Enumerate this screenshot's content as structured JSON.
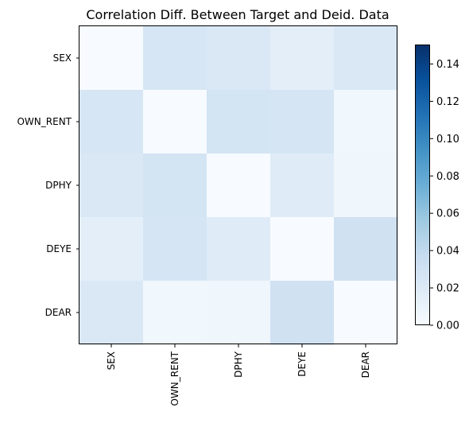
{
  "chart_data": {
    "type": "heatmap",
    "title": "Correlation Diff. Between Target and Deid. Data",
    "x_categories": [
      "SEX",
      "OWN_RENT",
      "DPHY",
      "DEYE",
      "DEAR"
    ],
    "y_categories": [
      "SEX",
      "OWN_RENT",
      "DPHY",
      "DEYE",
      "DEAR"
    ],
    "values": [
      [
        0.0,
        0.025,
        0.022,
        0.015,
        0.022
      ],
      [
        0.025,
        0.0,
        0.027,
        0.026,
        0.005
      ],
      [
        0.022,
        0.027,
        0.0,
        0.018,
        0.006
      ],
      [
        0.015,
        0.026,
        0.018,
        0.0,
        0.03
      ],
      [
        0.022,
        0.005,
        0.006,
        0.03,
        0.0
      ]
    ],
    "colorbar": {
      "min": 0.0,
      "max": 0.15,
      "ticks": [
        "0.00",
        "0.02",
        "0.04",
        "0.06",
        "0.08",
        "0.10",
        "0.12",
        "0.14"
      ],
      "colormap": "Blues"
    },
    "grid": false
  }
}
